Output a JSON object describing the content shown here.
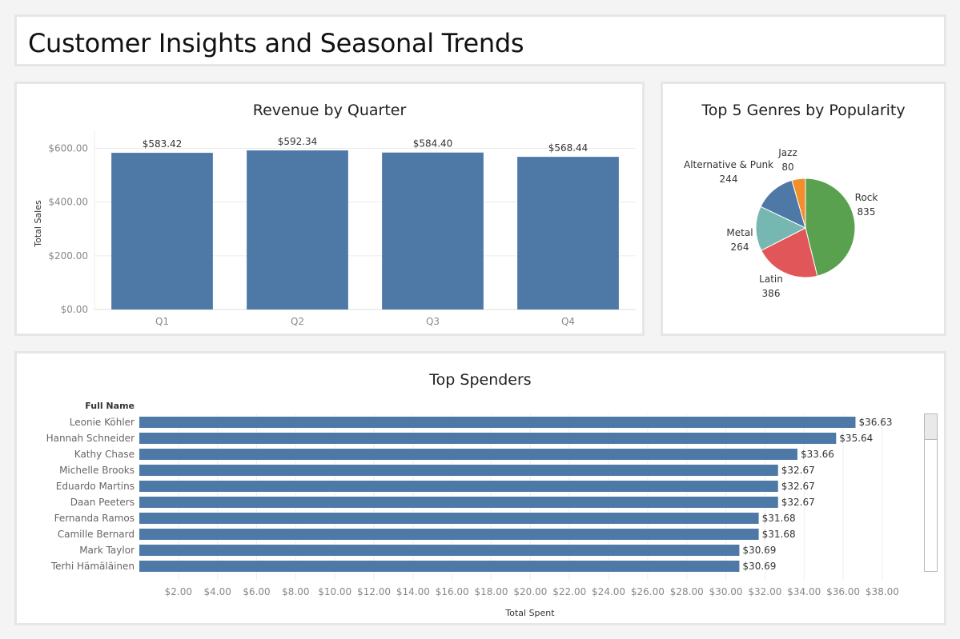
{
  "page": {
    "title": "Customer Insights and Seasonal Trends"
  },
  "chart_data": [
    {
      "id": "revenue",
      "type": "bar",
      "title": "Revenue by Quarter",
      "categories": [
        "Q1",
        "Q2",
        "Q3",
        "Q4"
      ],
      "values": [
        583.42,
        592.34,
        584.4,
        568.44
      ],
      "data_labels": [
        "$583.42",
        "$592.34",
        "$584.40",
        "$568.44"
      ],
      "ylabel": "Total Sales",
      "xlabel": "",
      "ylim": [
        0,
        670
      ],
      "yticks": [
        0,
        200,
        400,
        600
      ],
      "ytick_labels": [
        "$0.00",
        "$200.00",
        "$400.00",
        "$600.00"
      ],
      "bar_color": "#4e79a7",
      "grid": true
    },
    {
      "id": "genres",
      "type": "pie",
      "title": "Top 5 Genres by Popularity",
      "slices": [
        {
          "label": "Rock",
          "value": 835,
          "color": "#59a14f"
        },
        {
          "label": "Latin",
          "value": 386,
          "color": "#e15759"
        },
        {
          "label": "Metal",
          "value": 264,
          "color": "#76b7b2"
        },
        {
          "label": "Alternative & Punk",
          "value": 244,
          "color": "#4e79a7"
        },
        {
          "label": "Jazz",
          "value": 80,
          "color": "#f28e2b"
        }
      ]
    },
    {
      "id": "spenders",
      "type": "bar",
      "orientation": "horizontal",
      "title": "Top Spenders",
      "category_header": "Full Name",
      "categories": [
        "Leonie Köhler",
        "Hannah Schneider",
        "Kathy Chase",
        "Michelle Brooks",
        "Eduardo Martins",
        "Daan Peeters",
        "Fernanda Ramos",
        "Camille Bernard",
        "Mark Taylor",
        "Terhi Hämäläinen"
      ],
      "values": [
        36.63,
        35.64,
        33.66,
        32.67,
        32.67,
        32.67,
        31.68,
        31.68,
        30.69,
        30.69
      ],
      "data_labels": [
        "$36.63",
        "$35.64",
        "$33.66",
        "$32.67",
        "$32.67",
        "$32.67",
        "$31.68",
        "$31.68",
        "$30.69",
        "$30.69"
      ],
      "xlabel": "Total Spent",
      "xlim": [
        0,
        39.6
      ],
      "xticks": [
        2,
        4,
        6,
        8,
        10,
        12,
        14,
        16,
        18,
        20,
        22,
        24,
        26,
        28,
        30,
        32,
        34,
        36,
        38
      ],
      "xtick_labels": [
        "$2.00",
        "$4.00",
        "$6.00",
        "$8.00",
        "$10.00",
        "$12.00",
        "$14.00",
        "$16.00",
        "$18.00",
        "$20.00",
        "$22.00",
        "$24.00",
        "$26.00",
        "$28.00",
        "$30.00",
        "$32.00",
        "$34.00",
        "$36.00",
        "$38.00"
      ],
      "bar_color": "#4e79a7",
      "grid": true
    }
  ]
}
